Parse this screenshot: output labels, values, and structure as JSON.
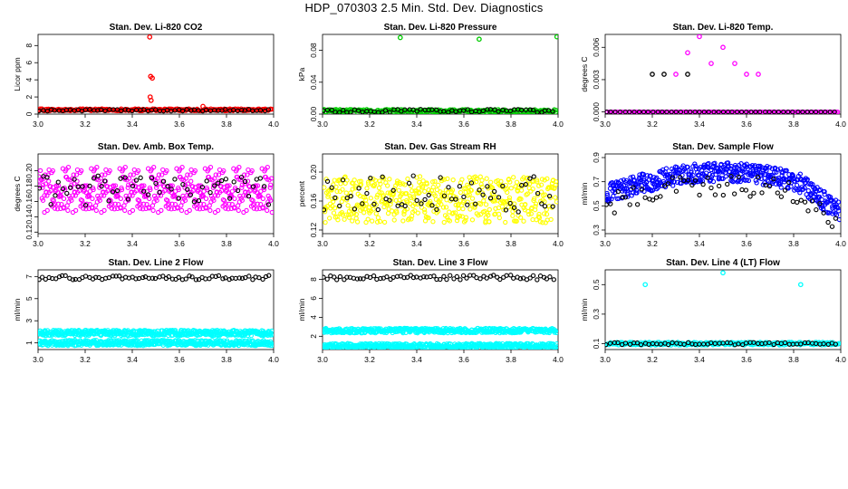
{
  "figure_title": "HDP_070303  2.5 Min. Std. Dev. Diagnostics",
  "chart_data": [
    {
      "type": "scatter",
      "title": "Stan. Dev. Li-820 CO2",
      "ylabel": "Licor ppm",
      "xlim": [
        3.0,
        4.0
      ],
      "ylim": [
        0,
        9.3
      ],
      "xticks": [
        "3.0",
        "3.2",
        "3.4",
        "3.6",
        "3.8",
        "4.0"
      ],
      "yticks": [
        "0",
        "2",
        "4",
        "6",
        "8"
      ],
      "ytick_values": [
        0,
        2,
        4,
        6,
        8
      ],
      "series": [
        {
          "name": "main",
          "color": "#ff0000",
          "baseline": 0.5,
          "noise": 0.12,
          "count": 300,
          "highlights": [
            [
              3.474,
              9.0
            ],
            [
              3.478,
              4.4
            ],
            [
              3.485,
              4.2
            ],
            [
              3.476,
              2.0
            ],
            [
              3.48,
              1.6
            ],
            [
              3.7,
              0.9
            ]
          ]
        },
        {
          "name": "reference",
          "color": "#000000",
          "baseline": 0.45,
          "noise": 0.1,
          "count": 60
        }
      ]
    },
    {
      "type": "scatter",
      "title": "Stan. Dev. Li-820 Pressure",
      "ylabel": "kPa",
      "xlim": [
        3.0,
        4.0
      ],
      "ylim": [
        0,
        0.1
      ],
      "xticks": [
        "3.0",
        "3.2",
        "3.4",
        "3.6",
        "3.8",
        "4.0"
      ],
      "yticks": [
        "0.00",
        "0.04",
        "0.08"
      ],
      "ytick_values": [
        0,
        0.04,
        0.08
      ],
      "series": [
        {
          "name": "main",
          "color": "#00cc00",
          "baseline": 0.004,
          "noise": 0.002,
          "count": 300,
          "highlights": [
            [
              3.33,
              0.096
            ],
            [
              3.665,
              0.094
            ],
            [
              3.995,
              0.097
            ]
          ]
        },
        {
          "name": "reference",
          "color": "#000000",
          "baseline": 0.004,
          "noise": 0.002,
          "count": 60
        }
      ]
    },
    {
      "type": "scatter",
      "title": "Stan. Dev. Li-820 Temp.",
      "ylabel": "degrees C",
      "xlim": [
        3.0,
        4.0
      ],
      "ylim": [
        -0.0002,
        0.0072
      ],
      "xticks": [
        "3.0",
        "3.2",
        "3.4",
        "3.6",
        "3.8",
        "4.0"
      ],
      "yticks": [
        "0.000",
        "0.003",
        "0.006"
      ],
      "ytick_values": [
        0,
        0.003,
        0.006
      ],
      "series": [
        {
          "name": "main",
          "color": "#ff00ff",
          "baseline": 0,
          "noise": 0,
          "count": 160,
          "highlights": [
            [
              3.4,
              0.007
            ],
            [
              3.35,
              0.0055
            ],
            [
              3.5,
              0.006
            ],
            [
              3.45,
              0.0045
            ],
            [
              3.55,
              0.0045
            ],
            [
              3.3,
              0.0035
            ],
            [
              3.6,
              0.0035
            ],
            [
              3.65,
              0.0035
            ]
          ]
        },
        {
          "name": "reference",
          "color": "#000000",
          "baseline": 0,
          "noise": 0,
          "count": 50,
          "highlights": [
            [
              3.2,
              0.0035
            ],
            [
              3.25,
              0.0035
            ],
            [
              3.35,
              0.0035
            ]
          ]
        }
      ]
    },
    {
      "type": "scatter",
      "title": "Stan. Dev. Amb. Box Temp.",
      "ylabel": "degrees C",
      "xlim": [
        3.0,
        4.0
      ],
      "ylim": [
        0.118,
        0.222
      ],
      "xticks": [
        "3.0",
        "3.2",
        "3.4",
        "3.6",
        "3.8",
        "4.0"
      ],
      "yticks": [
        "0.12",
        "0.14",
        "0.16",
        "0.18",
        "0.20"
      ],
      "ytick_values": [
        0.12,
        0.14,
        0.16,
        0.18,
        0.2
      ],
      "series": [
        {
          "name": "main",
          "color": "#ff00ff",
          "baseline": 0.175,
          "noise": 0.03,
          "count": 500
        },
        {
          "name": "reference",
          "color": "#000000",
          "baseline": 0.175,
          "noise": 0.02,
          "count": 60
        }
      ]
    },
    {
      "type": "scatter",
      "title": "Stan. Dev. Gas Stream RH",
      "ylabel": "percent",
      "xlim": [
        3.0,
        4.0
      ],
      "ylim": [
        0.115,
        0.225
      ],
      "xticks": [
        "3.0",
        "3.2",
        "3.4",
        "3.6",
        "3.8",
        "4.0"
      ],
      "yticks": [
        "0.12",
        "0.16",
        "0.20"
      ],
      "ytick_values": [
        0.12,
        0.16,
        0.2
      ],
      "series": [
        {
          "name": "main",
          "color": "#ffff00",
          "baseline": 0.162,
          "noise": 0.032,
          "count": 500
        },
        {
          "name": "reference",
          "color": "#000000",
          "baseline": 0.17,
          "noise": 0.025,
          "count": 60
        }
      ]
    },
    {
      "type": "scatter",
      "title": "Stan. Dev. Sample Flow",
      "ylabel": "ml/min",
      "xlim": [
        3.0,
        4.0
      ],
      "ylim": [
        0.27,
        0.93
      ],
      "xticks": [
        "3.0",
        "3.2",
        "3.4",
        "3.6",
        "3.8",
        "4.0"
      ],
      "yticks": [
        "0.3",
        "0.5",
        "0.7",
        "0.9"
      ],
      "ytick_values": [
        0.3,
        0.5,
        0.7,
        0.9
      ],
      "series": [
        {
          "name": "main",
          "color": "#0000ff",
          "baseline": 0.72,
          "noise": 0.1,
          "count": 500,
          "trend": "hump"
        },
        {
          "name": "reference",
          "color": "#000000",
          "baseline": 0.62,
          "noise": 0.12,
          "count": 60,
          "trend": "hump"
        }
      ]
    },
    {
      "type": "scatter",
      "title": "Stan. Dev. Line 2 Flow",
      "ylabel": "ml/min",
      "xlim": [
        3.0,
        4.0
      ],
      "ylim": [
        0.4,
        7.6
      ],
      "xticks": [
        "3.0",
        "3.2",
        "3.4",
        "3.6",
        "3.8",
        "4.0"
      ],
      "yticks": [
        "1",
        "3",
        "5",
        "7"
      ],
      "ytick_values": [
        1,
        3,
        5,
        7
      ],
      "series": [
        {
          "name": "main",
          "color": "#00ffff",
          "bands": [
            1.9,
            1.0
          ],
          "noise": 0.25,
          "count": 500
        },
        {
          "name": "reference",
          "color": "#000000",
          "baseline": 6.9,
          "noise": 0.2,
          "count": 70
        }
      ]
    },
    {
      "type": "scatter",
      "title": "Stan. Dev. Line 3 Flow",
      "ylabel": "ml/min",
      "xlim": [
        3.0,
        4.0
      ],
      "ylim": [
        0.6,
        9.0
      ],
      "xticks": [
        "3.0",
        "3.2",
        "3.4",
        "3.6",
        "3.8",
        "4.0"
      ],
      "yticks": [
        "2",
        "4",
        "6",
        "8"
      ],
      "ytick_values": [
        2,
        4,
        6,
        8
      ],
      "series": [
        {
          "name": "main",
          "color": "#00ffff",
          "bands": [
            2.6,
            1.0
          ],
          "noise": 0.25,
          "count": 500
        },
        {
          "name": "reference",
          "color": "#000000",
          "baseline": 8.2,
          "noise": 0.25,
          "count": 70
        }
      ]
    },
    {
      "type": "scatter",
      "title": "Stan. Dev. Line 4 (LT) Flow",
      "ylabel": "ml/min",
      "xlim": [
        3.0,
        4.0
      ],
      "ylim": [
        0.06,
        0.6
      ],
      "xticks": [
        "3.0",
        "3.2",
        "3.4",
        "3.6",
        "3.8",
        "4.0"
      ],
      "yticks": [
        "0.1",
        "0.3",
        "0.5"
      ],
      "ytick_values": [
        0.1,
        0.3,
        0.5
      ],
      "series": [
        {
          "name": "main",
          "color": "#00ffff",
          "baseline": 0.1,
          "noise": 0.01,
          "count": 300,
          "highlights": [
            [
              3.17,
              0.5
            ],
            [
              3.5,
              0.58
            ],
            [
              3.83,
              0.5
            ]
          ]
        },
        {
          "name": "reference",
          "color": "#000000",
          "baseline": 0.1,
          "noise": 0.008,
          "count": 60
        }
      ]
    }
  ]
}
